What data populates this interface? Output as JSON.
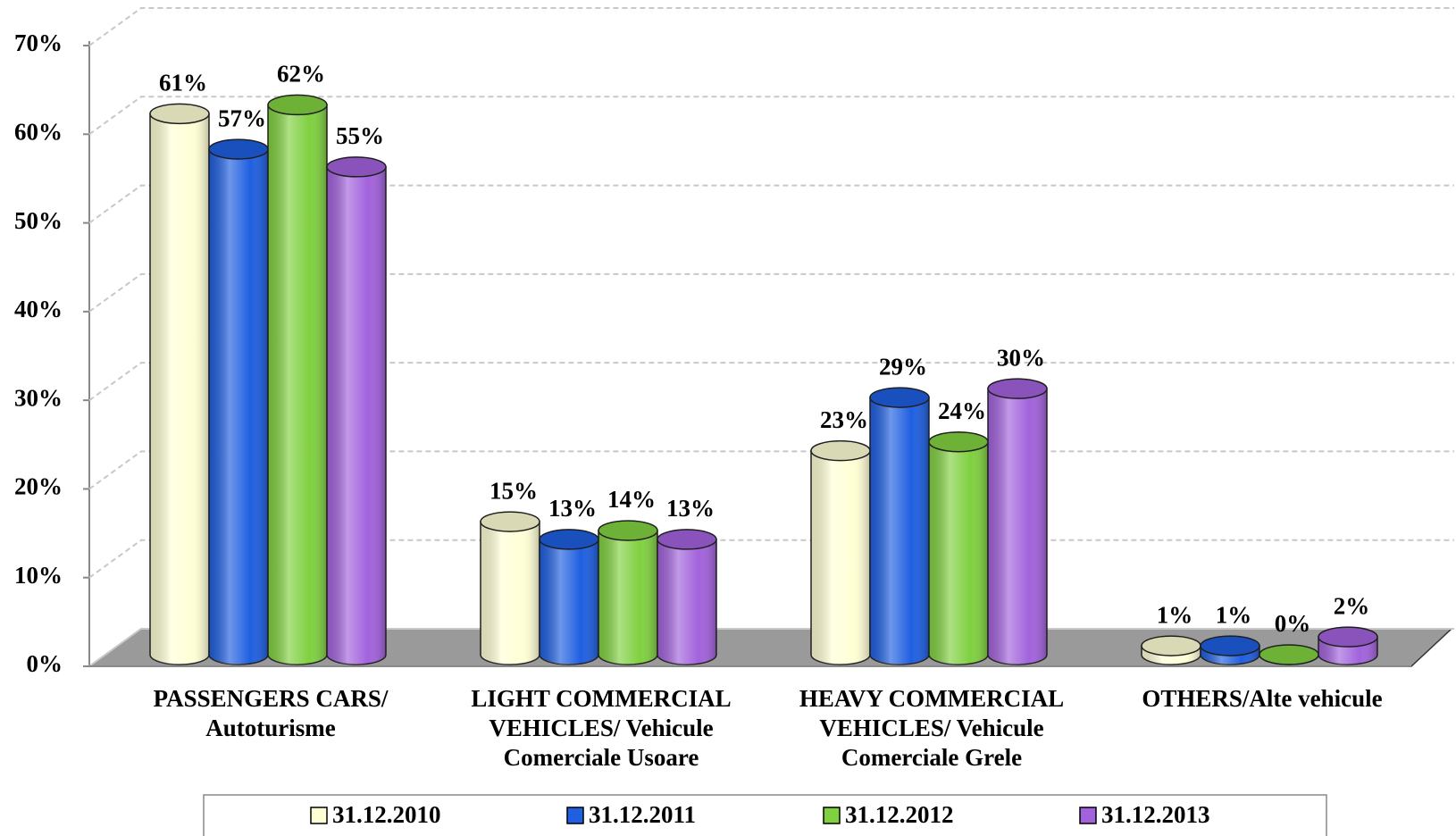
{
  "chart_data": {
    "type": "bar",
    "categories": [
      "PASSENGERS CARS/\nAutoturisme",
      "LIGHT COMMERCIAL\nVEHICLES/ Vehicule\nComerciale Usoare",
      "HEAVY COMMERCIAL\nVEHICLES/ Vehicule\nComerciale Grele",
      "OTHERS/Alte vehicule"
    ],
    "series": [
      {
        "name": "31.12.2010",
        "color": "#ffffd6",
        "values": [
          61,
          15,
          23,
          1
        ],
        "value_labels": [
          "61%",
          "15%",
          "23%",
          "1%"
        ]
      },
      {
        "name": "31.12.2011",
        "color": "#1f5fe0",
        "values": [
          57,
          13,
          29,
          1
        ],
        "value_labels": [
          "57%",
          "13%",
          "29%",
          "1%"
        ]
      },
      {
        "name": "31.12.2012",
        "color": "#80d040",
        "values": [
          62,
          14,
          24,
          0
        ],
        "value_labels": [
          "62%",
          "14%",
          "24%",
          "0%"
        ]
      },
      {
        "name": "31.12.2013",
        "color": "#a262dc",
        "values": [
          55,
          13,
          30,
          2
        ],
        "value_labels": [
          "55%",
          "13%",
          "30%",
          "2%"
        ]
      }
    ],
    "ylim": [
      0,
      70
    ],
    "yticks": [
      {
        "value": 0,
        "label": "0%"
      },
      {
        "value": 10,
        "label": "10%"
      },
      {
        "value": 20,
        "label": "20%"
      },
      {
        "value": 30,
        "label": "30%"
      },
      {
        "value": 40,
        "label": "40%"
      },
      {
        "value": 50,
        "label": "50%"
      },
      {
        "value": 60,
        "label": "60%"
      },
      {
        "value": 70,
        "label": "70%"
      }
    ],
    "grid": true,
    "legend": "bottom"
  }
}
